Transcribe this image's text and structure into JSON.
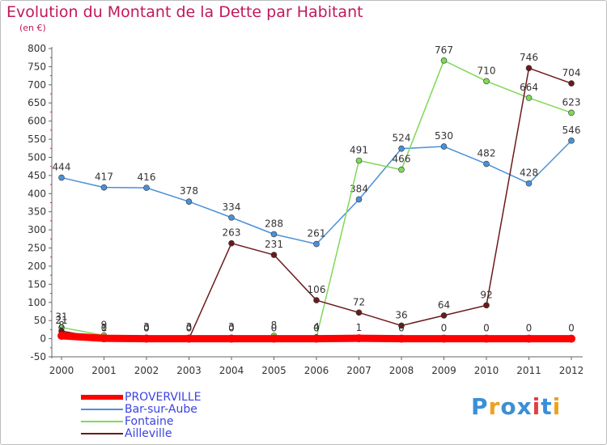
{
  "chart_data": {
    "type": "line",
    "title": "Evolution du Montant de la Dette par Habitant",
    "subtitle": "(en €)",
    "xlabel": "",
    "ylabel": "",
    "categories": [
      "2000",
      "2001",
      "2002",
      "2003",
      "2004",
      "2005",
      "2006",
      "2007",
      "2008",
      "2009",
      "2010",
      "2011",
      "2012"
    ],
    "ylim": [
      -50,
      800
    ],
    "yticks": [
      -50,
      0,
      50,
      100,
      150,
      200,
      250,
      300,
      350,
      400,
      450,
      500,
      550,
      600,
      650,
      700,
      750,
      800
    ],
    "ytick_labels": [
      "-50",
      "0",
      "50",
      "100",
      "150",
      "200",
      "250",
      "300",
      "350",
      "400",
      "450",
      "500",
      "550",
      "600",
      "650",
      "700",
      "750",
      "800"
    ],
    "grid": false,
    "legend_position": "bottom-left",
    "series": [
      {
        "name": "PROVERVILLE",
        "color": "#ff0000",
        "values": [
          8,
          1,
          0,
          0,
          0,
          0,
          0,
          1,
          0,
          0,
          0,
          0,
          0
        ],
        "labels": [
          "8",
          "1",
          "0",
          "0",
          "0",
          "0",
          "0",
          "1",
          "0",
          "0",
          "0",
          "0",
          "0"
        ]
      },
      {
        "name": "Bar-sur-Aube",
        "color": "#4a90d9",
        "values": [
          444,
          417,
          416,
          378,
          334,
          288,
          261,
          384,
          524,
          530,
          482,
          428,
          546
        ],
        "labels": [
          "444",
          "417",
          "416",
          "378",
          "334",
          "288",
          "261",
          "384",
          "524",
          "530",
          "482",
          "428",
          "546"
        ]
      },
      {
        "name": "Fontaine",
        "color": "#7ed957",
        "values": [
          31,
          9,
          3,
          3,
          3,
          8,
          4,
          491,
          466,
          767,
          710,
          664,
          623
        ],
        "labels": [
          "31",
          "9",
          "3",
          "3",
          "3",
          "8",
          "4",
          "491",
          "466",
          "767",
          "710",
          "664",
          "623"
        ]
      },
      {
        "name": "Ailleville",
        "color": "#6b1a1a",
        "values": [
          21,
          0,
          0,
          0,
          263,
          231,
          106,
          72,
          36,
          64,
          92,
          746,
          704
        ],
        "labels": [
          "21",
          "0",
          "0",
          "0",
          "263",
          "231",
          "106",
          "72",
          "36",
          "64",
          "92",
          "746",
          "704"
        ]
      }
    ]
  },
  "logo": {
    "letters": [
      "P",
      "r",
      "o",
      "x",
      "i",
      "t",
      "i"
    ],
    "colors": [
      "#3b8fd6",
      "#f0a020",
      "#3b8fd6",
      "#3b8fd6",
      "#e04040",
      "#3b8fd6",
      "#f0a020"
    ]
  }
}
